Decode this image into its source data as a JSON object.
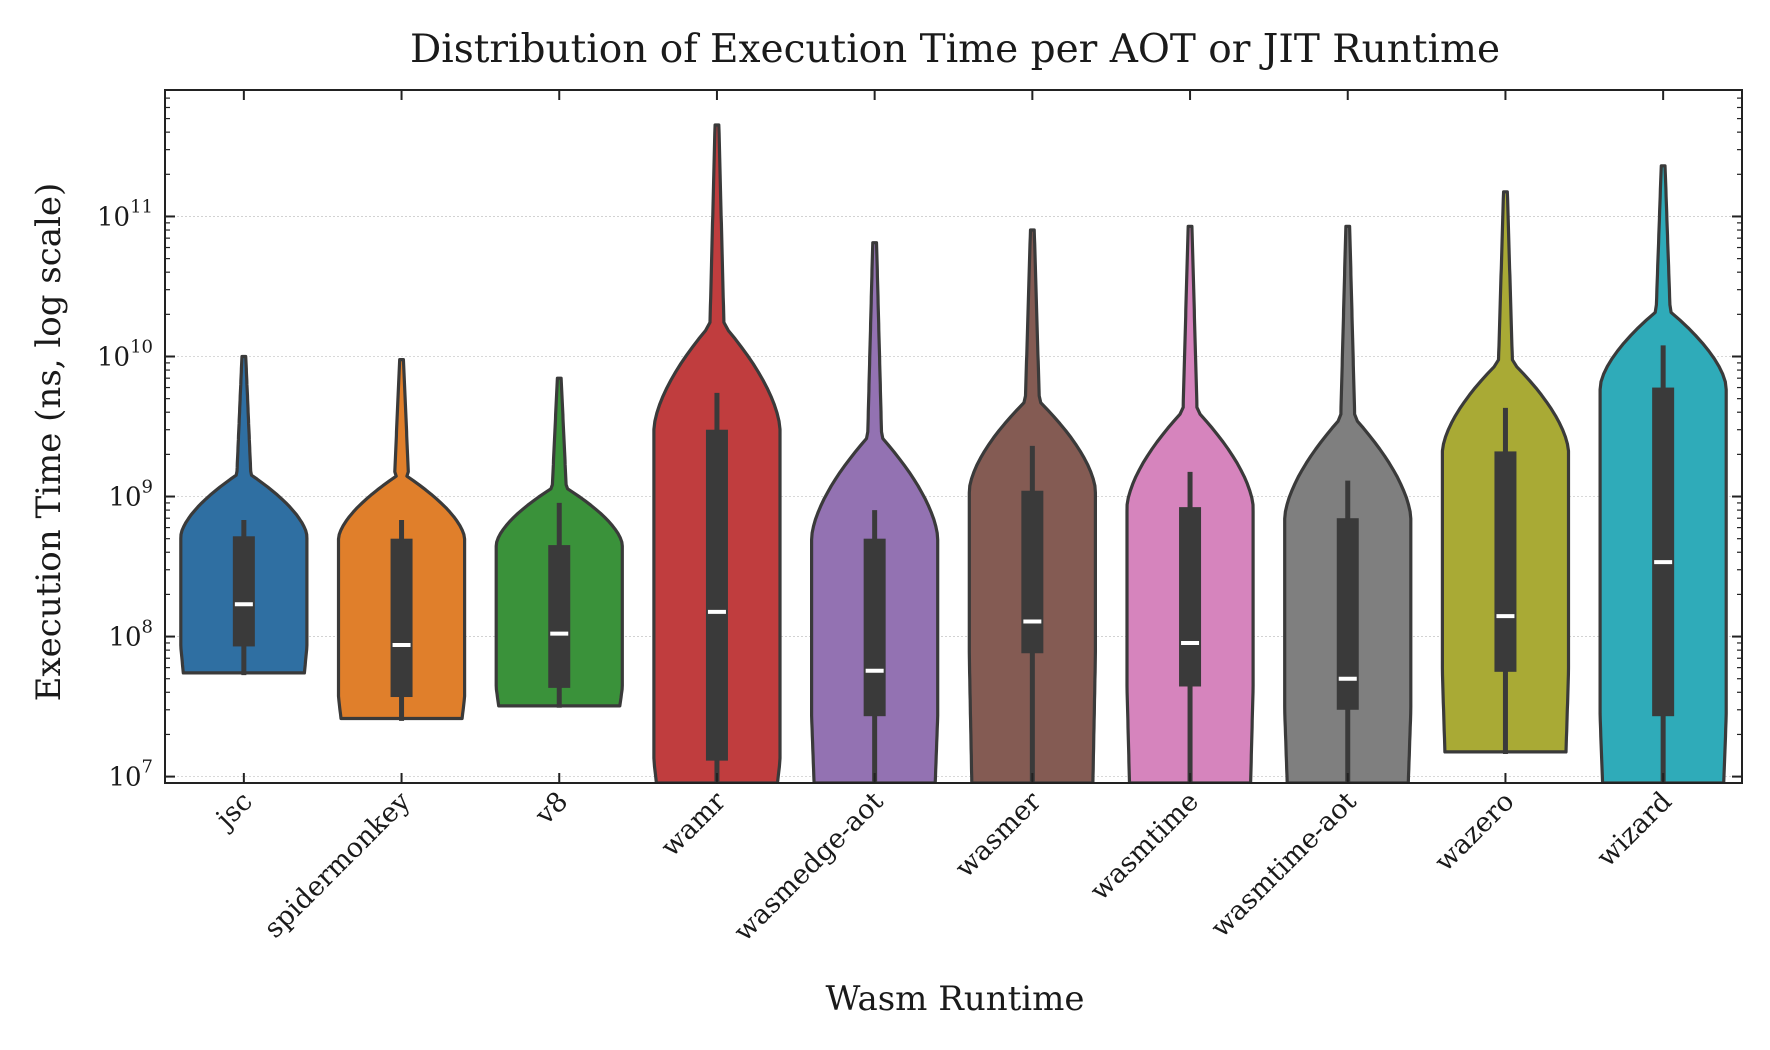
{
  "chart_data": {
    "type": "violin",
    "title": "Distribution of Execution Time per AOT or JIT Runtime",
    "xlabel": "Wasm Runtime",
    "ylabel": "Execution Time (ns, log scale)",
    "yscale": "log",
    "ylim": [
      9000000.0,
      800000000000.0
    ],
    "yticks": [
      {
        "value": 10000000.0,
        "base": "10",
        "exp": "7"
      },
      {
        "value": 100000000.0,
        "base": "10",
        "exp": "8"
      },
      {
        "value": 1000000000.0,
        "base": "10",
        "exp": "9"
      },
      {
        "value": 10000000000.0,
        "base": "10",
        "exp": "10"
      },
      {
        "value": 100000000000.0,
        "base": "10",
        "exp": "11"
      }
    ],
    "grid": true,
    "legend": "none",
    "categories": [
      "jsc",
      "spidermonkey",
      "v8",
      "wamr",
      "wasmedge-aot",
      "wasmer",
      "wasmtime",
      "wasmtime-aot",
      "wazero",
      "wizard"
    ],
    "series": [
      {
        "category": "jsc",
        "color": "#2f6fa2",
        "min": 55000000.0,
        "q1": 85000000.0,
        "median": 170000000.0,
        "q3": 520000000.0,
        "whisker_low": 53000000.0,
        "whisker_high": 680000000.0,
        "max": 10000000000.0
      },
      {
        "category": "spidermonkey",
        "color": "#e07f2b",
        "min": 26000000.0,
        "q1": 37000000.0,
        "median": 87000000.0,
        "q3": 500000000.0,
        "whisker_low": 25000000.0,
        "whisker_high": 680000000.0,
        "max": 9500000000.0
      },
      {
        "category": "v8",
        "color": "#3a923a",
        "min": 32000000.0,
        "q1": 43000000.0,
        "median": 105000000.0,
        "q3": 450000000.0,
        "whisker_low": 31000000.0,
        "whisker_high": 900000000.0,
        "max": 7000000000.0
      },
      {
        "category": "wamr",
        "color": "#c03d3e",
        "min": 9000000.0,
        "q1": 13000000.0,
        "median": 150000000.0,
        "q3": 3000000000.0,
        "whisker_low": 9000000.0,
        "whisker_high": 5500000000.0,
        "max": 450000000000.0
      },
      {
        "category": "wasmedge-aot",
        "color": "#9372b2",
        "min": 9000000.0,
        "q1": 27000000.0,
        "median": 57000000.0,
        "q3": 500000000.0,
        "whisker_low": 9000000.0,
        "whisker_high": 800000000.0,
        "max": 65000000000.0
      },
      {
        "category": "wasmer",
        "color": "#845b53",
        "min": 9000000.0,
        "q1": 76000000.0,
        "median": 128000000.0,
        "q3": 1100000000.0,
        "whisker_low": 9000000.0,
        "whisker_high": 2300000000.0,
        "max": 80000000000.0
      },
      {
        "category": "wasmtime",
        "color": "#d684bd",
        "min": 9000000.0,
        "q1": 44000000.0,
        "median": 90000000.0,
        "q3": 840000000.0,
        "whisker_low": 9000000.0,
        "whisker_high": 1500000000.0,
        "max": 85000000000.0
      },
      {
        "category": "wasmtime-aot",
        "color": "#7f7f7f",
        "min": 9000000.0,
        "q1": 30000000.0,
        "median": 50000000.0,
        "q3": 700000000.0,
        "whisker_low": 9000000.0,
        "whisker_high": 1300000000.0,
        "max": 85000000000.0
      },
      {
        "category": "wazero",
        "color": "#a9aa35",
        "min": 15000000.0,
        "q1": 56000000.0,
        "median": 140000000.0,
        "q3": 2100000000.0,
        "whisker_low": 14500000.0,
        "whisker_high": 4300000000.0,
        "max": 150000000000.0
      },
      {
        "category": "wizard",
        "color": "#2fabb9",
        "min": 9000000.0,
        "q1": 27000000.0,
        "median": 340000000.0,
        "q3": 6000000000.0,
        "whisker_low": 9000000.0,
        "whisker_high": 12000000000.0,
        "max": 230000000000.0
      }
    ]
  }
}
